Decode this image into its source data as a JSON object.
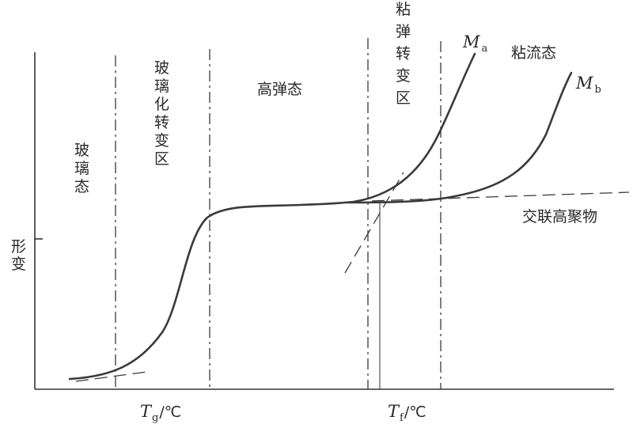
{
  "y_axis_label": "形变",
  "regions": {
    "glassy": "玻璃态",
    "glass_transition": "玻璃化转变区",
    "rubbery": "高弹态",
    "viscoelastic_transition": "粘弹转变区",
    "viscous_flow": "粘流态"
  },
  "curves": {
    "ma_main": "M",
    "ma_sub": "a",
    "mb_main": "M",
    "mb_sub": "b",
    "crosslinked": "交联高聚物"
  },
  "x_ticks": {
    "tg_main": "T",
    "tg_sub": "g",
    "tg_unit": "/℃",
    "tf_main": "T",
    "tf_sub": "f",
    "tf_unit": "/℃"
  }
}
